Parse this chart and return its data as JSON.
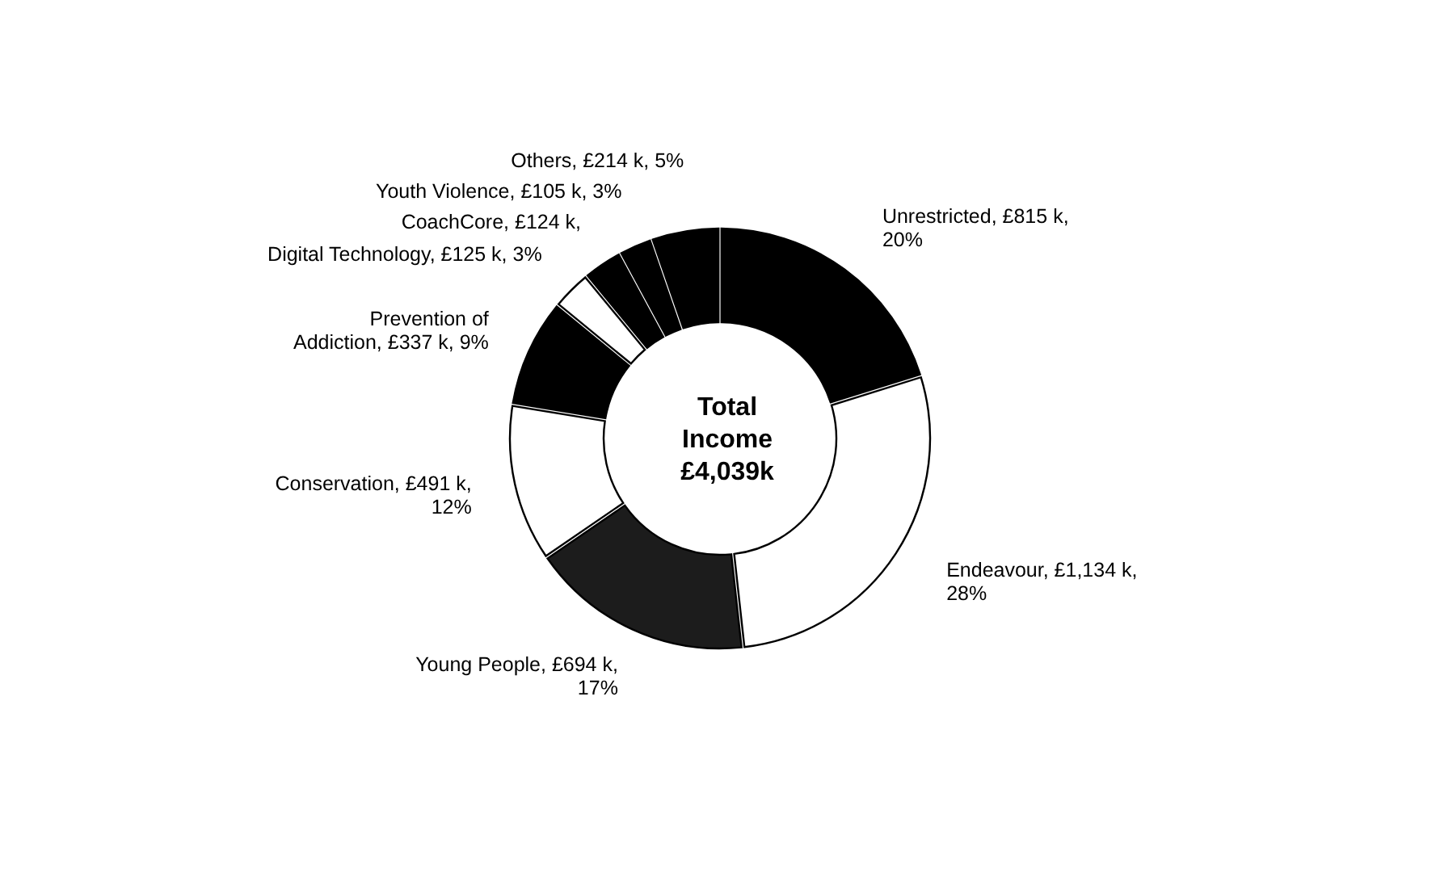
{
  "chart_data": {
    "type": "donut",
    "categories": [
      "Unrestricted",
      "Endeavour",
      "Young People",
      "Conservation",
      "Prevention of Addiction",
      "Digital Technology",
      "CoachCore",
      "Youth Violence",
      "Others"
    ],
    "values": [
      815,
      1134,
      694,
      491,
      337,
      125,
      124,
      105,
      214
    ],
    "colors": [
      "#000000",
      "#ffffff",
      "#1c1c1c",
      "#ffffff",
      "#000000",
      "#ffffff",
      "#000000",
      "#000000",
      "#000000"
    ],
    "value_labels": [
      "£815 k, 20%",
      "£1,134 k, 28%",
      "£694 k, 17%",
      "£491 k, 12%",
      "£337 k, 9%",
      "£125 k, 3%",
      "£124 k,",
      "£105 k, 3%",
      "£214 k, 5%"
    ],
    "annotations": [
      "Total Income £4,039k"
    ]
  }
}
